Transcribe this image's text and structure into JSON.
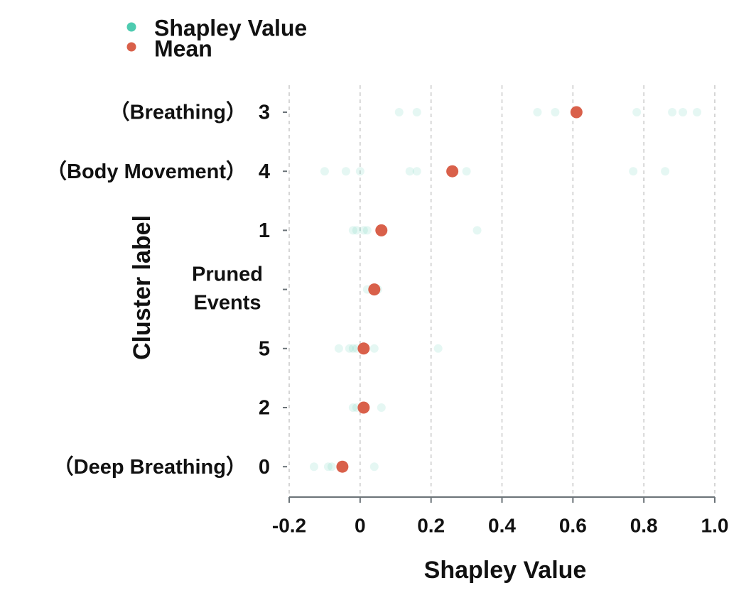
{
  "chart_data": {
    "type": "scatter",
    "orientation": "horizontal-categories",
    "title": "",
    "xlabel": "Shapley Value",
    "ylabel": "Cluster label",
    "xlim": [
      -0.2,
      1.0
    ],
    "x_ticks": [
      -0.2,
      0,
      0.2,
      0.4,
      0.6,
      0.8,
      1.0
    ],
    "x_tick_labels": [
      "-0.2",
      "0",
      "0.2",
      "0.4",
      "0.6",
      "0.8",
      "1.0"
    ],
    "grid": "vertical dashed",
    "legend": {
      "placement": "top-left",
      "entries": [
        {
          "name": "Shapley Value",
          "color": "#4ecbb0"
        },
        {
          "name": "Mean",
          "color": "#d9604a"
        }
      ]
    },
    "categories": [
      {
        "label": "（Breathing）",
        "id": "3"
      },
      {
        "label": "（Body Movement）",
        "id": "4"
      },
      {
        "label": "",
        "id": "1"
      },
      {
        "label": "Pruned Events",
        "id": ""
      },
      {
        "label": "",
        "id": "5"
      },
      {
        "label": "",
        "id": "2"
      },
      {
        "label": "（Deep Breathing）",
        "id": "0"
      }
    ],
    "series": [
      {
        "name": "Shapley Value",
        "color": "#4ecbb0",
        "points": [
          [
            0.11,
            0.16,
            0.5,
            0.55,
            0.78,
            0.88,
            0.91,
            0.95
          ],
          [
            -0.1,
            -0.04,
            0.0,
            0.14,
            0.16,
            0.3,
            0.77,
            0.86
          ],
          [
            -0.02,
            -0.01,
            0.01,
            0.02,
            0.33
          ],
          [
            0.02,
            0.04,
            0.05
          ],
          [
            -0.06,
            -0.03,
            -0.02,
            -0.01,
            0.04,
            0.22
          ],
          [
            -0.02,
            -0.01,
            0.06
          ],
          [
            -0.13,
            -0.09,
            -0.08,
            -0.05,
            0.04
          ]
        ]
      },
      {
        "name": "Mean",
        "color": "#d9604a",
        "values": [
          0.61,
          0.26,
          0.06,
          0.04,
          0.01,
          0.01,
          -0.05
        ]
      }
    ]
  }
}
